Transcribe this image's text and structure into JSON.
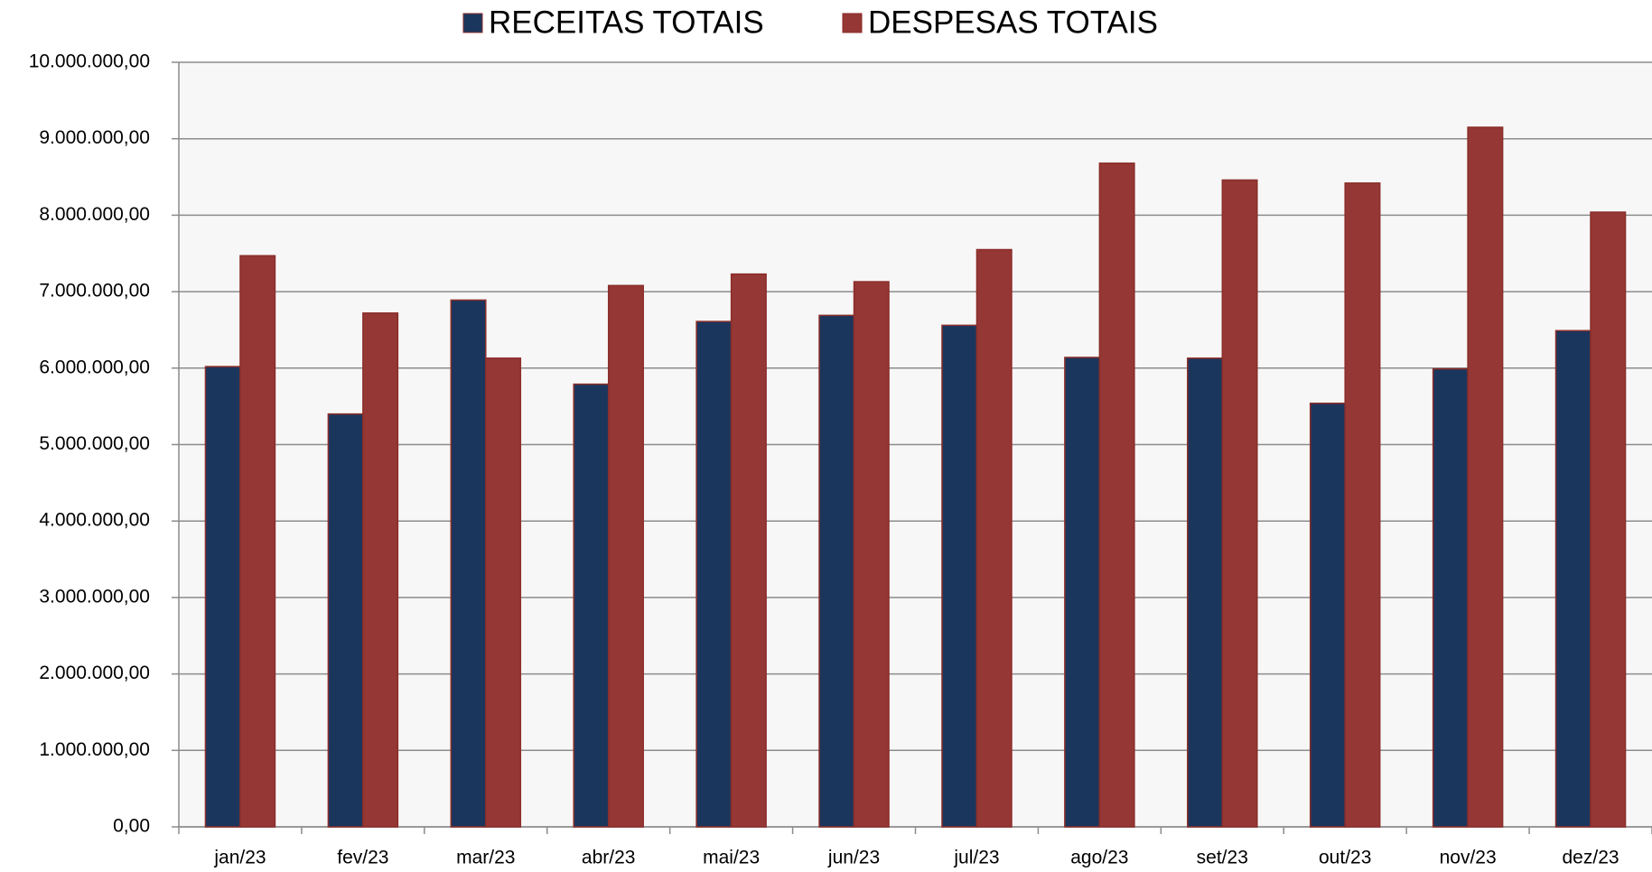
{
  "chart_data": {
    "type": "bar",
    "categories": [
      "jan/23",
      "fev/23",
      "mar/23",
      "abr/23",
      "mai/23",
      "jun/23",
      "jul/23",
      "ago/23",
      "set/23",
      "out/23",
      "nov/23",
      "dez/23"
    ],
    "series": [
      {
        "name": "RECEITAS TOTAIS",
        "color": "#1b365d",
        "values": [
          6020000,
          5400000,
          6890000,
          5790000,
          6610000,
          6690000,
          6560000,
          6140000,
          6130000,
          5540000,
          5990000,
          6490000
        ]
      },
      {
        "name": "DESPESAS TOTAIS",
        "color": "#953735",
        "values": [
          7470000,
          6720000,
          6130000,
          7080000,
          7230000,
          7130000,
          7550000,
          8680000,
          8460000,
          8420000,
          9150000,
          8040000
        ]
      }
    ],
    "ylim": [
      0,
      10000000
    ],
    "yticks": [
      {
        "value": 0,
        "label": "0,00"
      },
      {
        "value": 1000000,
        "label": "1.000.000,00"
      },
      {
        "value": 2000000,
        "label": "2.000.000,00"
      },
      {
        "value": 3000000,
        "label": "3.000.000,00"
      },
      {
        "value": 4000000,
        "label": "4.000.000,00"
      },
      {
        "value": 5000000,
        "label": "5.000.000,00"
      },
      {
        "value": 6000000,
        "label": "6.000.000,00"
      },
      {
        "value": 7000000,
        "label": "7.000.000,00"
      },
      {
        "value": 8000000,
        "label": "8.000.000,00"
      },
      {
        "value": 9000000,
        "label": "9.000.000,00"
      },
      {
        "value": 10000000,
        "label": "10.000.000,00"
      }
    ],
    "grid": true,
    "legend": "top"
  }
}
